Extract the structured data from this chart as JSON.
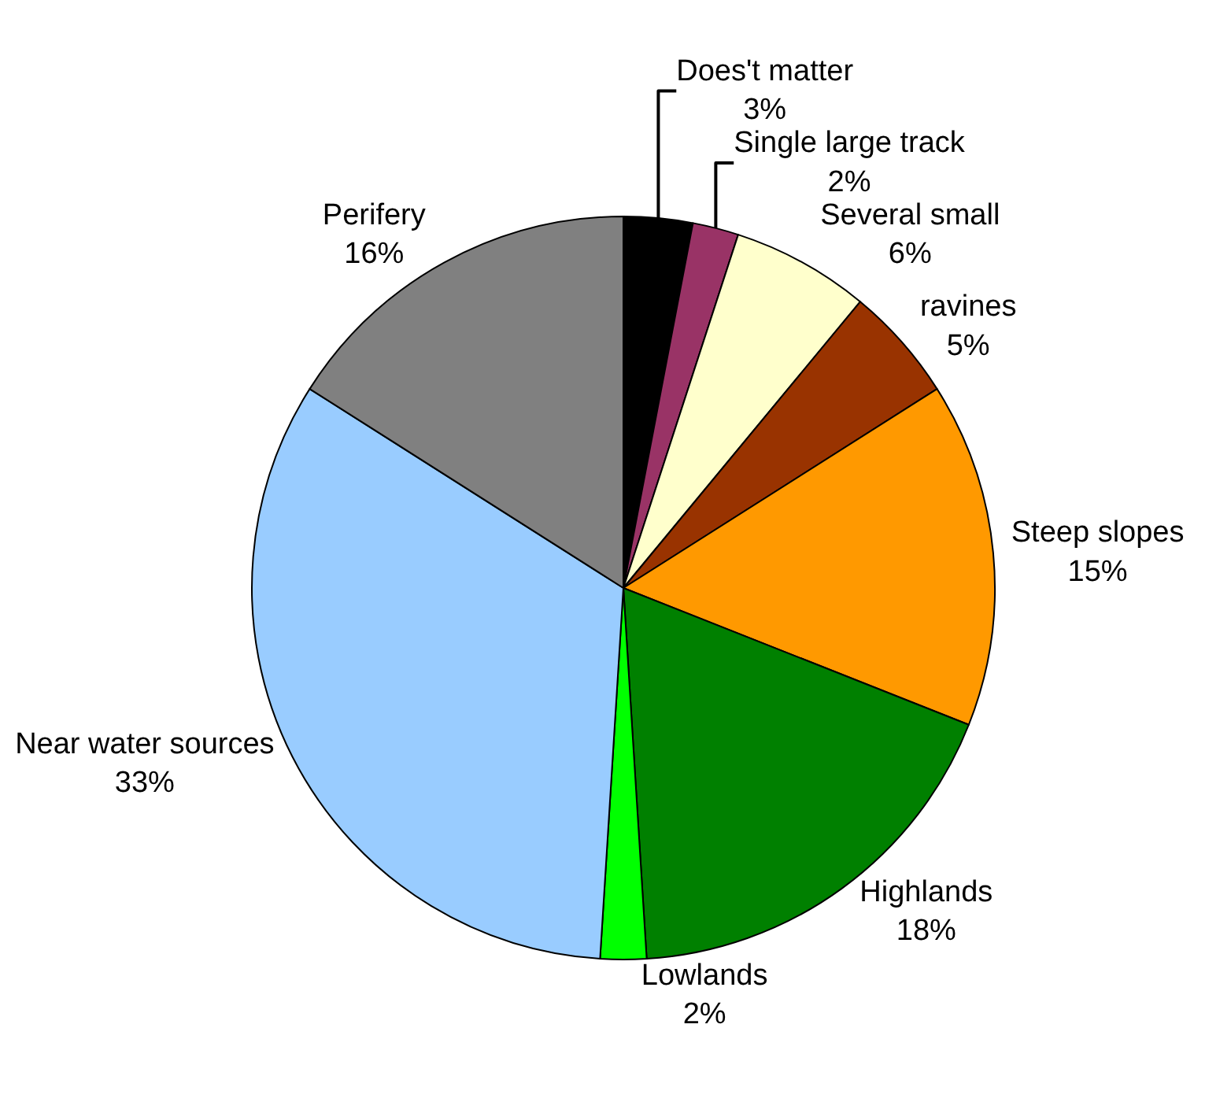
{
  "chart_data": {
    "type": "pie",
    "categories": [
      "Does't matter",
      "Single large track",
      "Several small",
      "ravines",
      "Steep slopes",
      "Highlands",
      "Lowlands",
      "Near water sources",
      "Perifery"
    ],
    "values": [
      3,
      2,
      6,
      5,
      15,
      18,
      2,
      33,
      16
    ],
    "value_labels": [
      "3%",
      "2%",
      "6%",
      "5%",
      "15%",
      "18%",
      "2%",
      "33%",
      "16%"
    ],
    "colors": [
      "#000000",
      "#993366",
      "#ffffcc",
      "#993300",
      "#ff9900",
      "#008000",
      "#00ff00",
      "#99ccff",
      "#808080"
    ],
    "legend": false
  }
}
